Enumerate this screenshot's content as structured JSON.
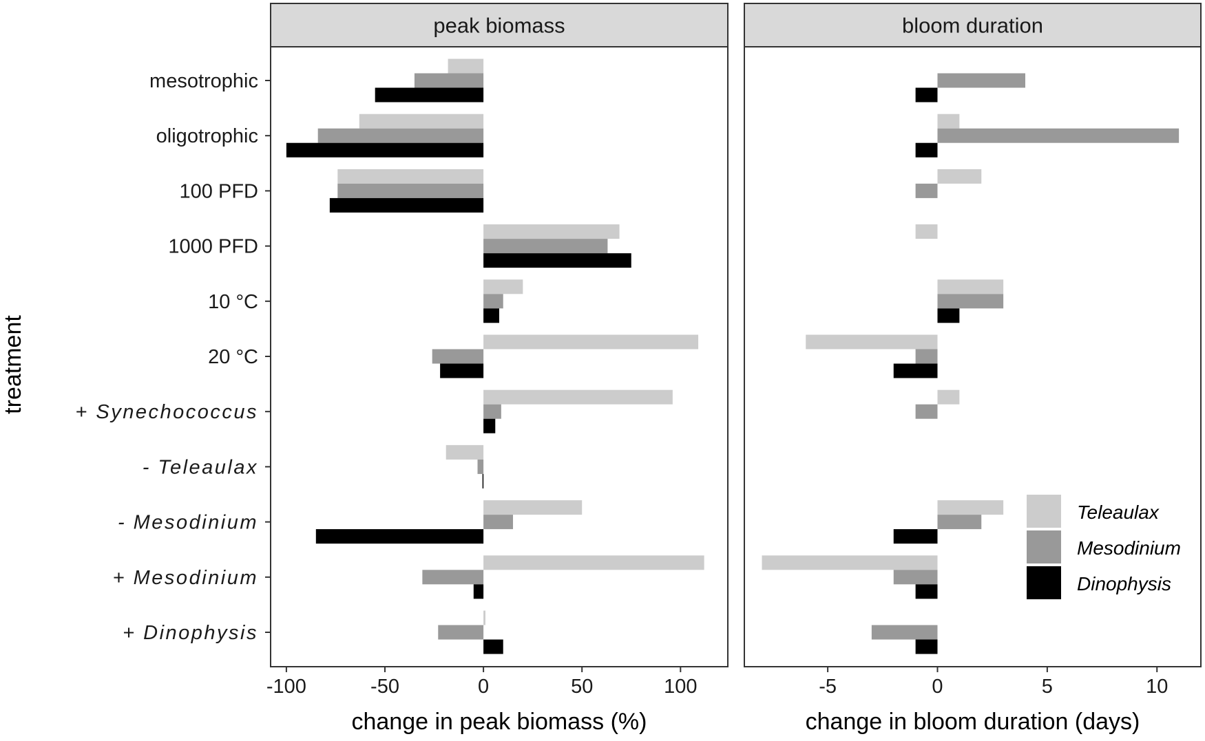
{
  "chart_data": {
    "type": "bar",
    "orientation": "horizontal",
    "categories": [
      "mesotrophic",
      "oligotrophic",
      "100 PFD",
      "1000 PFD",
      "10 °C",
      "20 °C",
      "+ Synechococcus",
      "- Teleaulax",
      "- Mesodinium",
      "+ Mesodinium",
      "+ Dinophysis"
    ],
    "category_style": [
      "normal",
      "normal",
      "normal",
      "normal",
      "normal",
      "normal",
      "italic",
      "italic",
      "italic",
      "italic",
      "italic"
    ],
    "ylabel": "treatment",
    "legend": {
      "position": "inside-bottom-right",
      "entries": [
        "Teleaulax",
        "Mesodinium",
        "Dinophysis"
      ]
    },
    "series_colors": {
      "Teleaulax": "#cccccc",
      "Mesodinium": "#999999",
      "Dinophysis": "#000000"
    },
    "panels": [
      {
        "strip": "peak biomass",
        "xlabel": "change in peak biomass (%)",
        "xlim": [
          -108,
          124
        ],
        "xticks": [
          -100,
          -50,
          0,
          50,
          100
        ],
        "xtick_labels": [
          "-100",
          "-50",
          "0",
          "50",
          "100"
        ],
        "series": [
          {
            "name": "Teleaulax",
            "values": [
              -18,
              -63,
              -74,
              69,
              20,
              109,
              96,
              -19,
              50,
              112,
              1
            ]
          },
          {
            "name": "Mesodinium",
            "values": [
              -35,
              -84,
              -74,
              63,
              10,
              -26,
              9,
              -3,
              15,
              -31,
              -23
            ]
          },
          {
            "name": "Dinophysis",
            "values": [
              -55,
              -100,
              -78,
              75,
              8,
              -22,
              6,
              -0.5,
              -85,
              -5,
              10
            ]
          }
        ]
      },
      {
        "strip": "bloom duration",
        "xlabel": "change in bloom duration (days)",
        "xlim": [
          -8.8,
          12
        ],
        "xticks": [
          -5,
          0,
          5,
          10
        ],
        "xtick_labels": [
          "-5",
          "0",
          "5",
          "10"
        ],
        "series": [
          {
            "name": "Teleaulax",
            "values": [
              0,
              1,
              2,
              -1,
              3,
              -6,
              1,
              0,
              3,
              -8,
              0
            ]
          },
          {
            "name": "Mesodinium",
            "values": [
              4,
              11,
              -1,
              0,
              3,
              -1,
              -1,
              0,
              2,
              -2,
              -3
            ]
          },
          {
            "name": "Dinophysis",
            "values": [
              -1,
              -1,
              0,
              0,
              1,
              -2,
              0,
              0,
              -2,
              -1,
              -1
            ]
          }
        ]
      }
    ]
  }
}
